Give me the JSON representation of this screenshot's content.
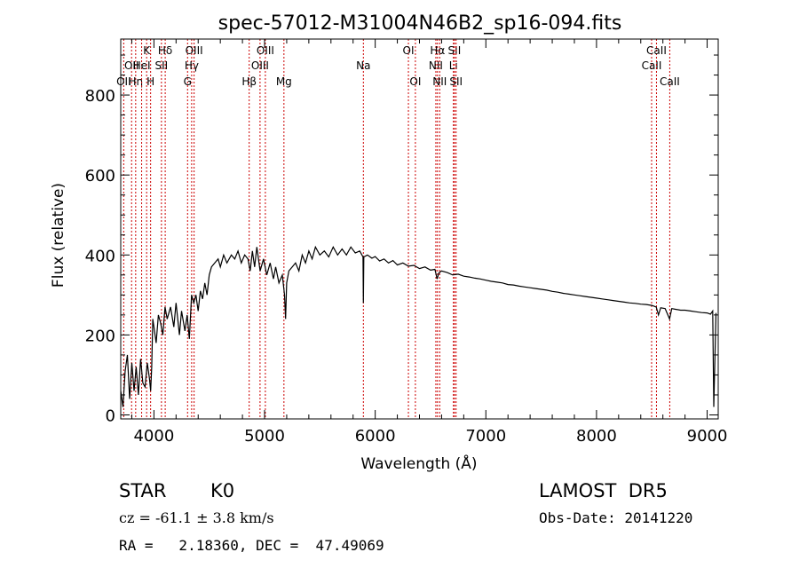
{
  "chart_data": {
    "type": "line",
    "title": "spec-57012-M31004N46B2_sp16-094.fits",
    "xlabel": "Wavelength (Å)",
    "ylabel": "Flux (relative)",
    "xlim": [
      3700,
      9100
    ],
    "ylim": [
      -10,
      940
    ],
    "xticks": [
      4000,
      5000,
      6000,
      7000,
      8000,
      9000
    ],
    "yticks": [
      0,
      200,
      400,
      600,
      800
    ],
    "grid": false,
    "series": [
      {
        "color": "#000000",
        "points": [
          [
            3700,
            60
          ],
          [
            3720,
            20
          ],
          [
            3740,
            110
          ],
          [
            3760,
            150
          ],
          [
            3780,
            40
          ],
          [
            3800,
            130
          ],
          [
            3820,
            60
          ],
          [
            3840,
            120
          ],
          [
            3860,
            50
          ],
          [
            3880,
            140
          ],
          [
            3900,
            80
          ],
          [
            3920,
            70
          ],
          [
            3940,
            130
          ],
          [
            3960,
            90
          ],
          [
            3970,
            60
          ],
          [
            3980,
            120
          ],
          [
            3990,
            240
          ],
          [
            4000,
            220
          ],
          [
            4020,
            180
          ],
          [
            4040,
            250
          ],
          [
            4060,
            230
          ],
          [
            4080,
            200
          ],
          [
            4100,
            270
          ],
          [
            4120,
            240
          ],
          [
            4150,
            270
          ],
          [
            4180,
            220
          ],
          [
            4200,
            280
          ],
          [
            4230,
            200
          ],
          [
            4250,
            260
          ],
          [
            4280,
            210
          ],
          [
            4300,
            250
          ],
          [
            4320,
            190
          ],
          [
            4340,
            300
          ],
          [
            4360,
            280
          ],
          [
            4380,
            300
          ],
          [
            4400,
            260
          ],
          [
            4420,
            310
          ],
          [
            4440,
            290
          ],
          [
            4460,
            330
          ],
          [
            4480,
            300
          ],
          [
            4500,
            350
          ],
          [
            4520,
            370
          ],
          [
            4550,
            380
          ],
          [
            4580,
            390
          ],
          [
            4600,
            370
          ],
          [
            4630,
            400
          ],
          [
            4660,
            380
          ],
          [
            4700,
            400
          ],
          [
            4730,
            390
          ],
          [
            4760,
            410
          ],
          [
            4790,
            380
          ],
          [
            4820,
            400
          ],
          [
            4850,
            390
          ],
          [
            4870,
            360
          ],
          [
            4890,
            410
          ],
          [
            4910,
            370
          ],
          [
            4930,
            420
          ],
          [
            4960,
            360
          ],
          [
            4990,
            390
          ],
          [
            5020,
            350
          ],
          [
            5050,
            380
          ],
          [
            5080,
            340
          ],
          [
            5100,
            370
          ],
          [
            5130,
            330
          ],
          [
            5160,
            350
          ],
          [
            5180,
            300
          ],
          [
            5190,
            240
          ],
          [
            5200,
            330
          ],
          [
            5220,
            360
          ],
          [
            5250,
            370
          ],
          [
            5280,
            380
          ],
          [
            5310,
            360
          ],
          [
            5340,
            400
          ],
          [
            5370,
            380
          ],
          [
            5400,
            410
          ],
          [
            5430,
            390
          ],
          [
            5460,
            420
          ],
          [
            5500,
            400
          ],
          [
            5540,
            410
          ],
          [
            5580,
            395
          ],
          [
            5620,
            420
          ],
          [
            5660,
            400
          ],
          [
            5700,
            415
          ],
          [
            5740,
            400
          ],
          [
            5780,
            420
          ],
          [
            5820,
            405
          ],
          [
            5860,
            410
          ],
          [
            5890,
            395
          ],
          [
            5893,
            280
          ],
          [
            5897,
            395
          ],
          [
            5930,
            400
          ],
          [
            5970,
            392
          ],
          [
            6000,
            396
          ],
          [
            6040,
            385
          ],
          [
            6080,
            390
          ],
          [
            6120,
            380
          ],
          [
            6160,
            386
          ],
          [
            6200,
            375
          ],
          [
            6250,
            380
          ],
          [
            6300,
            372
          ],
          [
            6350,
            374
          ],
          [
            6400,
            366
          ],
          [
            6450,
            370
          ],
          [
            6500,
            362
          ],
          [
            6540,
            364
          ],
          [
            6560,
            340
          ],
          [
            6575,
            355
          ],
          [
            6600,
            360
          ],
          [
            6650,
            356
          ],
          [
            6700,
            350
          ],
          [
            6750,
            352
          ],
          [
            6800,
            347
          ],
          [
            6850,
            345
          ],
          [
            6900,
            342
          ],
          [
            6950,
            340
          ],
          [
            7000,
            337
          ],
          [
            7050,
            334
          ],
          [
            7100,
            332
          ],
          [
            7150,
            330
          ],
          [
            7200,
            326
          ],
          [
            7250,
            325
          ],
          [
            7300,
            322
          ],
          [
            7350,
            320
          ],
          [
            7400,
            318
          ],
          [
            7450,
            316
          ],
          [
            7500,
            314
          ],
          [
            7550,
            312
          ],
          [
            7600,
            309
          ],
          [
            7650,
            307
          ],
          [
            7700,
            304
          ],
          [
            7750,
            302
          ],
          [
            7800,
            300
          ],
          [
            7850,
            298
          ],
          [
            7900,
            296
          ],
          [
            7950,
            294
          ],
          [
            8000,
            292
          ],
          [
            8050,
            290
          ],
          [
            8100,
            288
          ],
          [
            8150,
            286
          ],
          [
            8200,
            284
          ],
          [
            8250,
            282
          ],
          [
            8300,
            280
          ],
          [
            8350,
            279
          ],
          [
            8400,
            277
          ],
          [
            8450,
            276
          ],
          [
            8500,
            274
          ],
          [
            8540,
            270
          ],
          [
            8560,
            250
          ],
          [
            8580,
            268
          ],
          [
            8620,
            266
          ],
          [
            8660,
            240
          ],
          [
            8680,
            266
          ],
          [
            8720,
            264
          ],
          [
            8760,
            262
          ],
          [
            8800,
            262
          ],
          [
            8850,
            260
          ],
          [
            8900,
            258
          ],
          [
            8950,
            256
          ],
          [
            9000,
            255
          ],
          [
            9030,
            252
          ],
          [
            9050,
            260
          ],
          [
            9060,
            20
          ],
          [
            9080,
            255
          ]
        ]
      }
    ],
    "lines": [
      {
        "x": 3727,
        "labels": [
          {
            "t": "OII",
            "r": 3
          }
        ]
      },
      {
        "x": 3798,
        "labels": [
          {
            "t": "OII",
            "r": 2
          }
        ]
      },
      {
        "x": 3835,
        "labels": [
          {
            "t": "Hη",
            "r": 3
          }
        ]
      },
      {
        "x": 3889,
        "labels": [
          {
            "t": "HeI",
            "r": 2
          }
        ]
      },
      {
        "x": 3934,
        "labels": [
          {
            "t": "K",
            "r": 1
          }
        ]
      },
      {
        "x": 3970,
        "labels": [
          {
            "t": "H",
            "r": 3
          }
        ]
      },
      {
        "x": 4068,
        "labels": [
          {
            "t": "SII",
            "r": 2
          }
        ]
      },
      {
        "x": 4102,
        "labels": [
          {
            "t": "Hδ",
            "r": 1
          }
        ]
      },
      {
        "x": 4304,
        "labels": [
          {
            "t": "G",
            "r": 3
          }
        ]
      },
      {
        "x": 4341,
        "labels": [
          {
            "t": "Hγ",
            "r": 2
          }
        ]
      },
      {
        "x": 4363,
        "labels": [
          {
            "t": "OIII",
            "r": 1
          }
        ]
      },
      {
        "x": 4861,
        "labels": [
          {
            "t": "Hβ",
            "r": 3
          }
        ]
      },
      {
        "x": 4959,
        "labels": [
          {
            "t": "OIII",
            "r": 2
          }
        ]
      },
      {
        "x": 5007,
        "labels": [
          {
            "t": "OIII",
            "r": 1
          }
        ]
      },
      {
        "x": 5175,
        "labels": [
          {
            "t": "Mg",
            "r": 3
          }
        ]
      },
      {
        "x": 5893,
        "labels": [
          {
            "t": "Na",
            "r": 2
          }
        ]
      },
      {
        "x": 6300,
        "labels": [
          {
            "t": "OI",
            "r": 1
          }
        ]
      },
      {
        "x": 6363,
        "labels": [
          {
            "t": "OI",
            "r": 3
          }
        ]
      },
      {
        "x": 6548,
        "labels": [
          {
            "t": "NII",
            "r": 2
          }
        ]
      },
      {
        "x": 6563,
        "labels": [
          {
            "t": "Hα",
            "r": 1
          }
        ]
      },
      {
        "x": 6583,
        "labels": [
          {
            "t": "NII",
            "r": 3
          }
        ]
      },
      {
        "x": 6707,
        "labels": [
          {
            "t": "Li",
            "r": 2
          }
        ]
      },
      {
        "x": 6716,
        "labels": [
          {
            "t": "SII",
            "r": 1
          }
        ]
      },
      {
        "x": 6731,
        "labels": [
          {
            "t": "SII",
            "r": 3
          }
        ]
      },
      {
        "x": 8498,
        "labels": [
          {
            "t": "CaII",
            "r": 2
          }
        ]
      },
      {
        "x": 8542,
        "labels": [
          {
            "t": "CaII",
            "r": 1
          }
        ]
      },
      {
        "x": 8662,
        "labels": [
          {
            "t": "CaII",
            "r": 3
          }
        ]
      }
    ],
    "line_color": "#cc0000"
  },
  "info": {
    "class": "STAR",
    "subclass": "K0",
    "survey": "LAMOST  DR5",
    "cz": "cz = -61.1 ± 3.8 km/s",
    "obs_date": "Obs-Date: 20141220",
    "radec": "RA =   2.18360, DEC =  47.49069"
  }
}
